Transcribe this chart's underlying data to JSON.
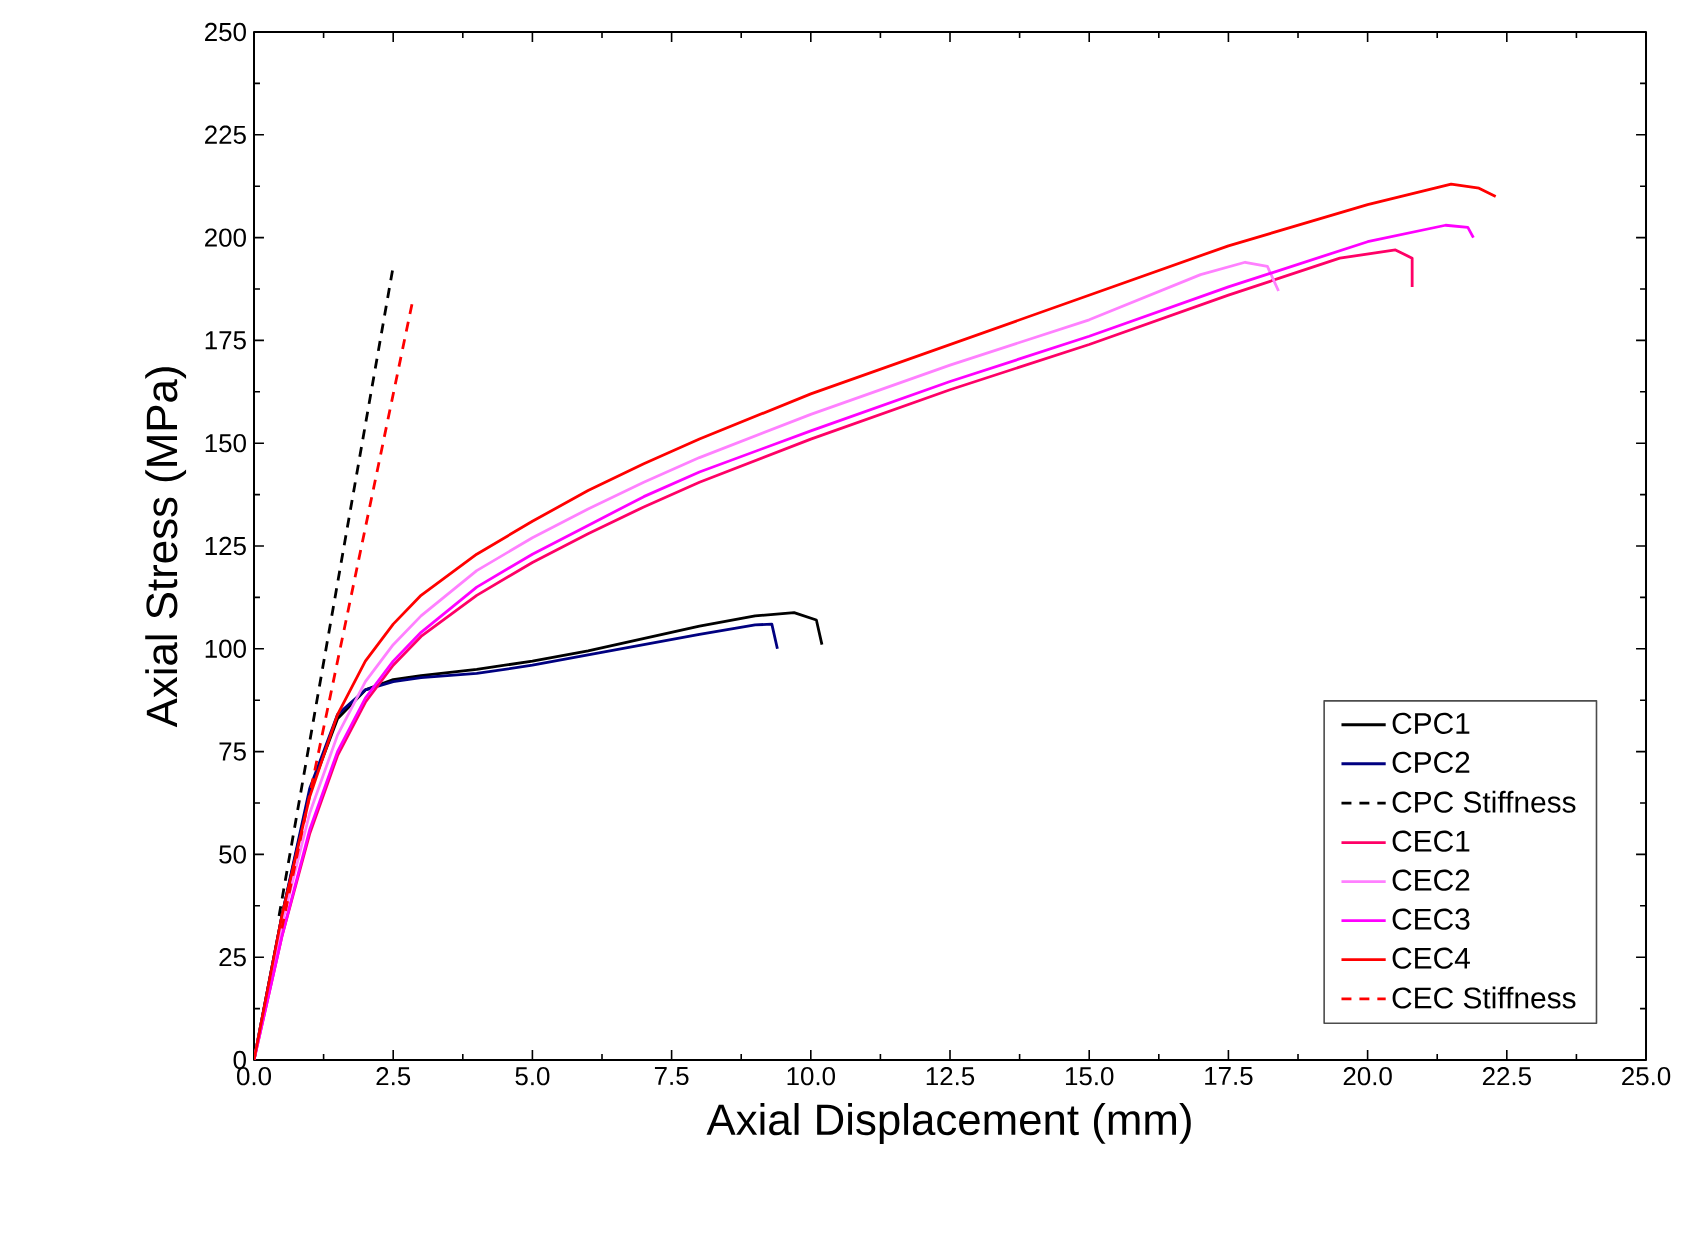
{
  "chart_data": {
    "type": "line",
    "xlabel": "Axial Displacement (mm)",
    "ylabel": "Axial Stress (MPa)",
    "xlim": [
      0,
      25
    ],
    "ylim": [
      0,
      250
    ],
    "xticks": [
      {
        "value": 0,
        "label": "0.0"
      },
      {
        "value": 2.5,
        "label": "2.5"
      },
      {
        "value": 5,
        "label": "5.0"
      },
      {
        "value": 7.5,
        "label": "7.5"
      },
      {
        "value": 10,
        "label": "10.0"
      },
      {
        "value": 12.5,
        "label": "12.5"
      },
      {
        "value": 15,
        "label": "15.0"
      },
      {
        "value": 17.5,
        "label": "17.5"
      },
      {
        "value": 20,
        "label": "20.0"
      },
      {
        "value": 22.5,
        "label": "22.5"
      },
      {
        "value": 25,
        "label": "25.0"
      }
    ],
    "yticks": [
      0,
      25,
      50,
      75,
      100,
      125,
      150,
      175,
      200,
      225,
      250
    ],
    "grid": false,
    "legend": "bottom right",
    "marker": "none",
    "series": [
      {
        "name": "CPC1",
        "color": "#000000",
        "line_style": "solid",
        "x": [
          0,
          0.5,
          1,
          1.5,
          2,
          2.5,
          3,
          4,
          5,
          6,
          7,
          8,
          9,
          9.7,
          10.1,
          10.2
        ],
        "values": [
          0,
          35,
          65,
          83,
          90,
          92.5,
          93.5,
          95,
          97,
          99.5,
          102.5,
          105.5,
          108,
          108.8,
          107,
          101
        ]
      },
      {
        "name": "CPC2",
        "color": "#000080",
        "line_style": "solid",
        "x": [
          0,
          0.5,
          1,
          1.5,
          2,
          2.5,
          3,
          4,
          5,
          6,
          7,
          8,
          9,
          9.3,
          9.4
        ],
        "values": [
          0,
          35,
          66,
          84,
          90,
          92,
          93,
          94,
          96,
          98.5,
          101,
          103.5,
          105.8,
          106,
          100
        ]
      },
      {
        "name": "CPC Stiffness",
        "color": "#000000",
        "line_style": "dashed",
        "x": [
          0.45,
          2.5
        ],
        "values": [
          35,
          193
        ]
      },
      {
        "name": "CEC1",
        "color": "#ff0066",
        "line_style": "solid",
        "x": [
          0,
          0.5,
          1,
          1.5,
          2,
          2.5,
          3,
          4,
          5,
          6,
          7,
          8,
          10,
          12.5,
          15,
          17.5,
          19.5,
          20.5,
          20.8,
          20.8
        ],
        "values": [
          0,
          30,
          55,
          74,
          87,
          96,
          103,
          113,
          121,
          128,
          134.5,
          140.5,
          151,
          163,
          174,
          186,
          195,
          197,
          195,
          188
        ]
      },
      {
        "name": "CEC2",
        "color": "#ff80ff",
        "line_style": "solid",
        "x": [
          0,
          0.5,
          1,
          1.5,
          2,
          2.5,
          3,
          4,
          5,
          6,
          7,
          8,
          10,
          12.5,
          15,
          17,
          17.8,
          18.2,
          18.4
        ],
        "values": [
          0,
          33,
          60,
          79,
          92,
          101,
          108,
          119,
          127,
          134,
          140.5,
          146.5,
          157,
          169,
          180,
          191,
          194,
          193,
          187
        ]
      },
      {
        "name": "CEC3",
        "color": "#ff00ff",
        "line_style": "solid",
        "x": [
          0,
          0.5,
          1,
          1.5,
          2,
          2.5,
          3,
          4,
          5,
          6,
          7,
          8,
          10,
          12.5,
          15,
          17.5,
          20,
          21.4,
          21.8,
          21.9
        ],
        "values": [
          0,
          30,
          56,
          75,
          88,
          97,
          104,
          115,
          123,
          130,
          137,
          143,
          153,
          165,
          176,
          188,
          199,
          203,
          202.5,
          200
        ]
      },
      {
        "name": "CEC4",
        "color": "#ff0000",
        "line_style": "solid",
        "x": [
          0,
          0.5,
          1,
          1.5,
          2,
          2.5,
          3,
          4,
          5,
          6,
          7,
          8,
          10,
          12.5,
          15,
          17.5,
          20,
          21.5,
          22,
          22.3
        ],
        "values": [
          0,
          35,
          64,
          84,
          97,
          106,
          113,
          123,
          131,
          138.5,
          145,
          151,
          162,
          174,
          186,
          198,
          208,
          213,
          212,
          210
        ]
      },
      {
        "name": "CEC Stiffness",
        "color": "#ff0000",
        "line_style": "dashed",
        "x": [
          0.5,
          2.84
        ],
        "values": [
          32,
          184
        ]
      }
    ]
  }
}
